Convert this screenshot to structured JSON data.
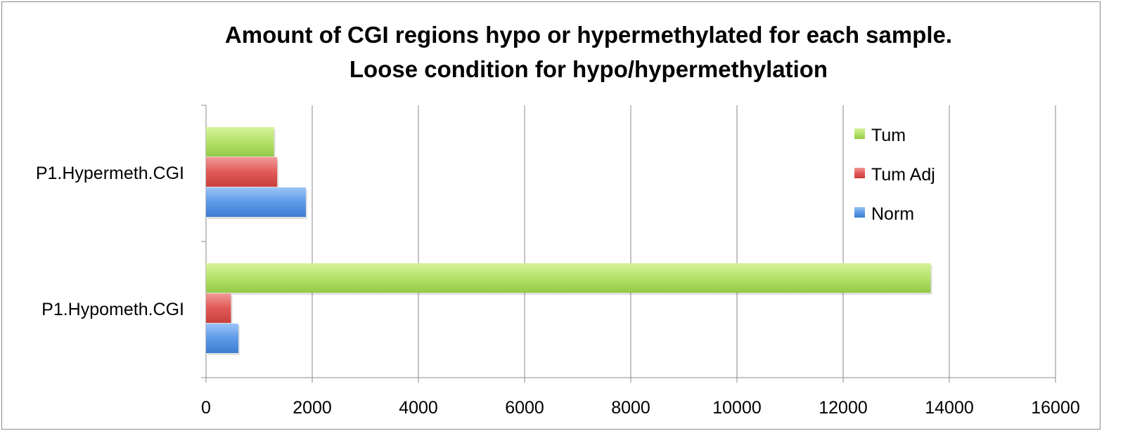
{
  "chart_data": {
    "type": "bar",
    "orientation": "horizontal",
    "title": "Amount of CGI regions hypo or hypermethylated for each sample.",
    "subtitle": "Loose condition for hypo/hypermethylation",
    "categories": [
      "P1.Hypermeth.CGI",
      "P1.Hypometh.CGI"
    ],
    "series": [
      {
        "name": "Tum",
        "values": [
          1280,
          13650
        ],
        "color": "#a6d854"
      },
      {
        "name": "Tum Adj",
        "values": [
          1340,
          470
        ],
        "color": "#e0504f"
      },
      {
        "name": "Norm",
        "values": [
          1880,
          610
        ],
        "color": "#4f8fde"
      }
    ],
    "xlim": [
      0,
      16000
    ],
    "x_ticks": [
      0,
      2000,
      4000,
      6000,
      8000,
      10000,
      12000,
      14000,
      16000
    ],
    "xlabel": "",
    "ylabel": "",
    "grid": "vertical",
    "legend_position": "top-right"
  }
}
